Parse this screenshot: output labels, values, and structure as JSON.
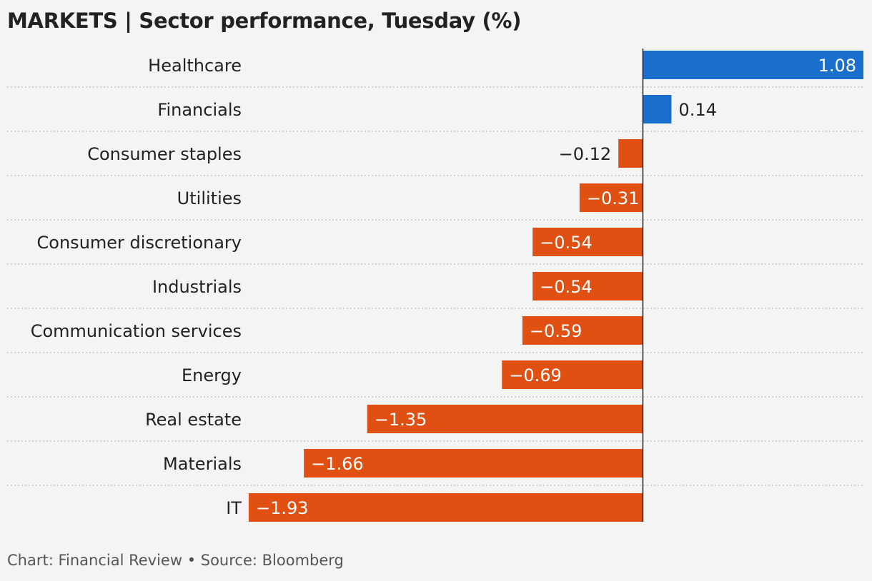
{
  "header": {
    "title": "MARKETS | Sector performance, Tuesday (%)"
  },
  "footer": {
    "credit": "Chart: Financial Review • Source: Bloomberg"
  },
  "colors": {
    "positive": "#1a6fcc",
    "negative": "#e05012",
    "axis": "#222222",
    "separator": "#bdbdbd",
    "label_inside": "#ffffff",
    "label_outside": "#222222"
  },
  "chart_data": {
    "type": "bar",
    "orientation": "horizontal",
    "title": "MARKETS | Sector performance, Tuesday (%)",
    "categories": [
      "Healthcare",
      "Financials",
      "Consumer staples",
      "Utilities",
      "Consumer discretionary",
      "Industrials",
      "Communication services",
      "Energy",
      "Real estate",
      "Materials",
      "IT"
    ],
    "values": [
      1.08,
      0.14,
      -0.12,
      -0.31,
      -0.54,
      -0.54,
      -0.59,
      -0.69,
      -1.35,
      -1.66,
      -1.93
    ],
    "value_labels": [
      "1.08",
      "0.14",
      "−0.12",
      "−0.31",
      "−0.54",
      "−0.54",
      "−0.59",
      "−0.69",
      "−1.35",
      "−1.66",
      "−1.93"
    ],
    "xlim": [
      -1.93,
      1.08
    ],
    "grid": false,
    "legend": "none"
  }
}
